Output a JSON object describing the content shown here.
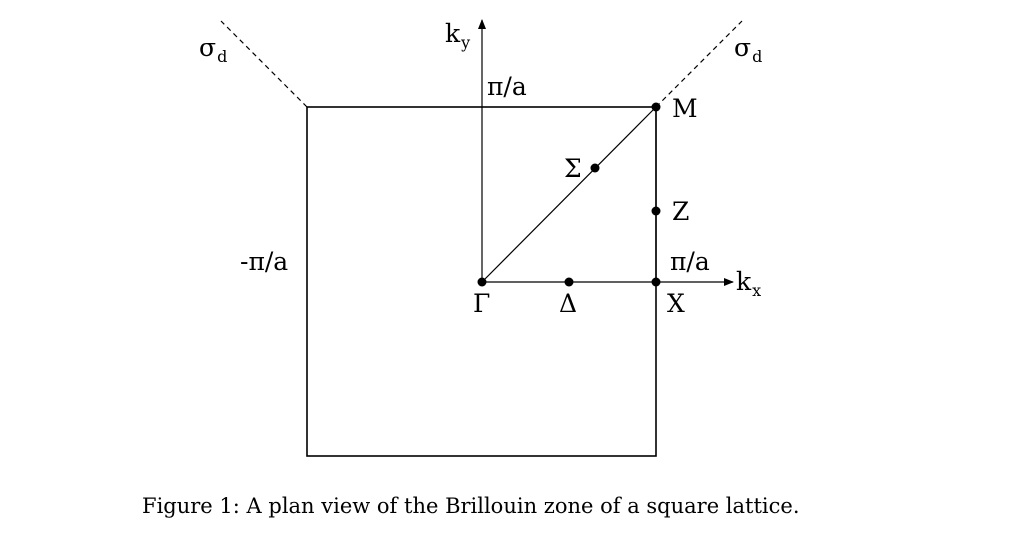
{
  "labels": {
    "ky_main": "k",
    "ky_sub": "y",
    "kx_main": "k",
    "kx_sub": "x",
    "sigma_main": "σ",
    "sigma_sub": "d",
    "pi_over_a": "π/a",
    "minus_pi_over_a": "-π/a"
  },
  "points": {
    "gamma": "Γ",
    "delta": "Δ",
    "x": "X",
    "sigma": "Σ",
    "z": "Z",
    "m": "M"
  },
  "caption": {
    "prefix": "Figure 1:",
    "text": "A plan view of the Brillouin zone of a square lattice."
  }
}
